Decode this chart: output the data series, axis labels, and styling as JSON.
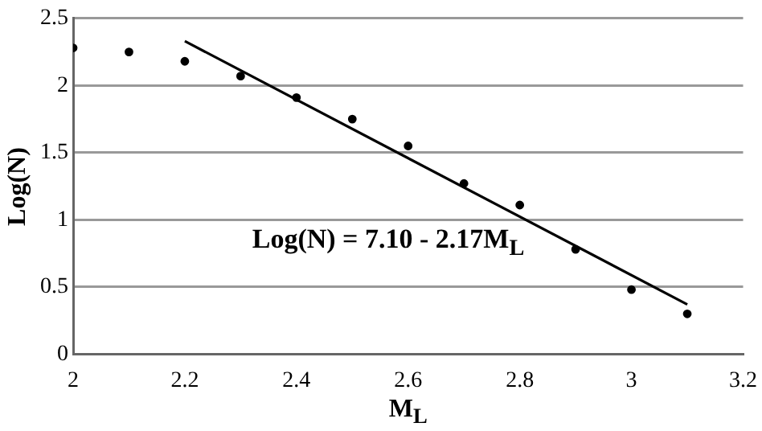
{
  "chart_data": {
    "type": "scatter",
    "xlabel": "M$_{L}$",
    "ylabel": "Log(N)",
    "x": [
      2.0,
      2.1,
      2.2,
      2.3,
      2.4,
      2.5,
      2.6,
      2.7,
      2.8,
      2.9,
      3.0,
      3.1
    ],
    "series": [
      {
        "type": "scatter",
        "color": "#000000",
        "values": [
          2.28,
          2.25,
          2.18,
          2.07,
          1.91,
          1.75,
          1.55,
          1.27,
          1.11,
          0.78,
          0.48,
          0.3
        ]
      },
      {
        "type": "line",
        "color": "#000000",
        "x": [
          2.2,
          3.1
        ],
        "values": [
          2.33,
          0.37
        ],
        "marker": "none"
      }
    ],
    "xlim": [
      2,
      3.2
    ],
    "xticks": [
      2,
      2.2,
      2.4,
      2.6,
      2.8,
      3,
      3.2
    ],
    "ylim": [
      0,
      2.5
    ],
    "yticks": [
      0,
      0.5,
      1,
      1.5,
      2,
      2.5
    ],
    "grid": "y",
    "marker": "circle",
    "line_style": "solid",
    "annotations": [
      "Log(N) = 7.10 - 2.17M$_{L}$"
    ]
  }
}
